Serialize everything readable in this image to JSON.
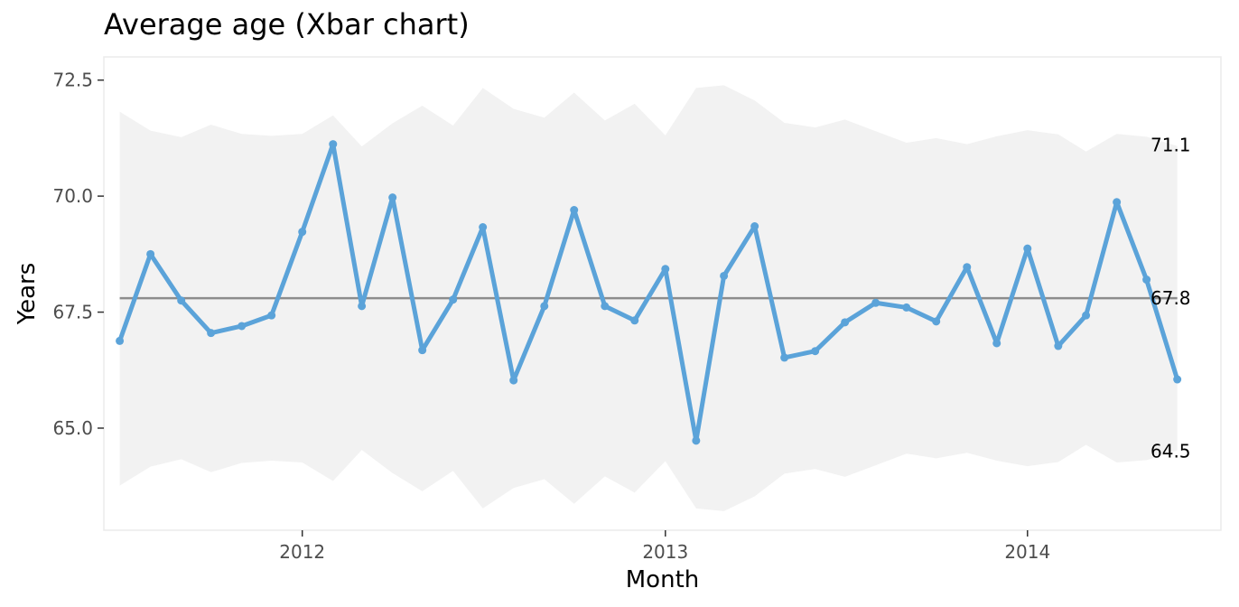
{
  "chart_data": {
    "type": "line",
    "title": "Average age (Xbar chart)",
    "xlabel": "Month",
    "ylabel": "Years",
    "ylim": [
      62.8,
      73.0
    ],
    "xlim": [
      "2011-06-15",
      "2014-07-15"
    ],
    "x_ticks": [
      {
        "date": "2012-01-01",
        "label": "2012"
      },
      {
        "date": "2013-01-01",
        "label": "2013"
      },
      {
        "date": "2014-01-01",
        "label": "2014"
      }
    ],
    "y_ticks": [
      {
        "value": 65.0,
        "label": "65.0"
      },
      {
        "value": 67.5,
        "label": "67.5"
      },
      {
        "value": 70.0,
        "label": "70.0"
      },
      {
        "value": 72.5,
        "label": "72.5"
      }
    ],
    "center_line": 67.8,
    "end_labels": [
      {
        "value": 71.1,
        "label": "71.1"
      },
      {
        "value": 67.8,
        "label": "67.8"
      },
      {
        "value": 64.5,
        "label": "64.5"
      }
    ],
    "colors": {
      "series": "#5ba3d9",
      "center": "#8c8c8c",
      "band": "#f2f2f2",
      "panel_border": "#ebebeb"
    },
    "series": [
      {
        "x": [
          "2011-07",
          "2011-08",
          "2011-09",
          "2011-10",
          "2011-11",
          "2011-12",
          "2012-01",
          "2012-02",
          "2012-03",
          "2012-04",
          "2012-05",
          "2012-06",
          "2012-07",
          "2012-08",
          "2012-09",
          "2012-10",
          "2012-11",
          "2012-12",
          "2013-01",
          "2013-02",
          "2013-03",
          "2013-04",
          "2013-05",
          "2013-06",
          "2013-07",
          "2013-08",
          "2013-09",
          "2013-10",
          "2013-11",
          "2013-12",
          "2014-01",
          "2014-02",
          "2014-03",
          "2014-04",
          "2014-05",
          "2014-06"
        ],
        "values": [
          66.88,
          68.75,
          67.75,
          67.05,
          67.2,
          67.43,
          69.23,
          71.12,
          67.63,
          69.97,
          66.68,
          67.77,
          69.33,
          66.03,
          67.63,
          69.7,
          67.63,
          67.32,
          68.43,
          64.73,
          68.28,
          69.35,
          66.52,
          66.66,
          67.28,
          67.7,
          67.6,
          67.3,
          68.47,
          66.83,
          68.87,
          66.77,
          67.43,
          69.87,
          68.2,
          66.05
        ],
        "ucl": [
          71.82,
          71.41,
          71.27,
          71.54,
          71.34,
          71.3,
          71.34,
          71.74,
          71.07,
          71.57,
          71.95,
          71.52,
          72.33,
          71.88,
          71.69,
          72.23,
          71.63,
          71.99,
          71.31,
          72.33,
          72.39,
          72.06,
          71.58,
          71.48,
          71.65,
          71.4,
          71.15,
          71.25,
          71.12,
          71.29,
          71.42,
          71.33,
          70.96,
          71.34,
          71.28,
          71.08
        ],
        "lcl": [
          63.76,
          64.17,
          64.33,
          64.05,
          64.25,
          64.3,
          64.26,
          63.86,
          64.53,
          64.03,
          63.64,
          64.08,
          63.27,
          63.71,
          63.9,
          63.37,
          63.96,
          63.61,
          64.29,
          63.27,
          63.21,
          63.53,
          64.02,
          64.12,
          63.95,
          64.2,
          64.45,
          64.35,
          64.47,
          64.3,
          64.18,
          64.27,
          64.64,
          64.26,
          64.31,
          64.52
        ]
      }
    ]
  }
}
